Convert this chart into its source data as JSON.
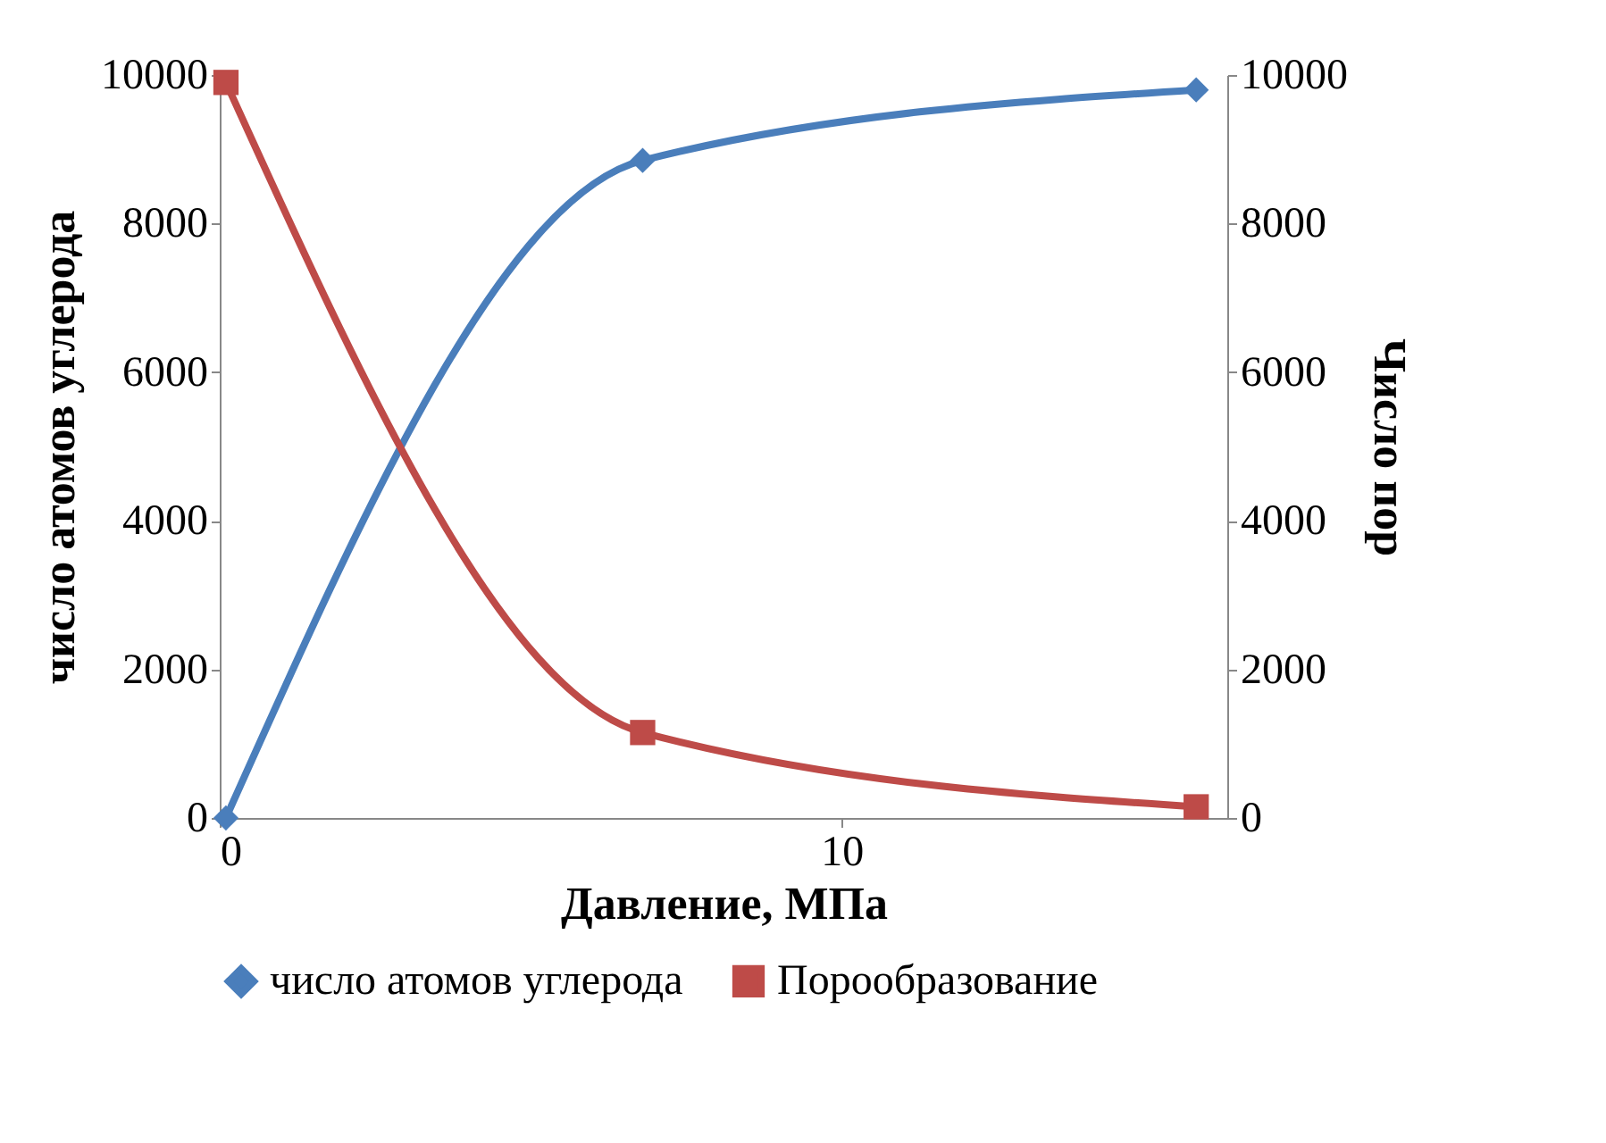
{
  "chart_data": {
    "type": "line",
    "xlabel": "Давление, МПа",
    "ylabel": "число атомов  углерода",
    "y2label": "Число пор",
    "xlim": [
      0,
      16.2
    ],
    "xticks": [
      0,
      10
    ],
    "ylim": [
      0,
      10000
    ],
    "yticks": [
      0,
      2000,
      4000,
      6000,
      8000,
      10000
    ],
    "y2lim": [
      0,
      10000
    ],
    "y2ticks": [
      0,
      2000,
      4000,
      6000,
      8000,
      10000
    ],
    "grid": false,
    "legend": "bottom",
    "line_style": "solid",
    "series": [
      {
        "name": "число атомов углерода",
        "color": "#4a7ebb",
        "marker": "diamond",
        "x": [
          0.1,
          6.8,
          15.7
        ],
        "values": [
          0,
          8850,
          9800
        ]
      },
      {
        "name": "Порообразование",
        "color": "#be4b48",
        "marker": "square",
        "axis": "y2",
        "x": [
          0.1,
          6.8,
          15.7
        ],
        "values": [
          9900,
          1150,
          150
        ]
      }
    ]
  }
}
